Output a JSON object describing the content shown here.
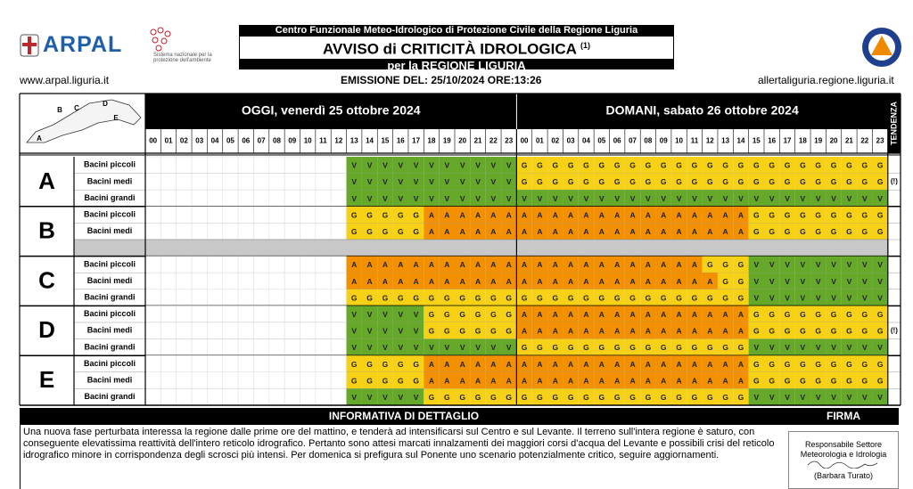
{
  "header": {
    "logo": "ARPAL",
    "snpa": "Sistema nazionale per la protezione dell'ambiente",
    "line1": "Centro Funzionale Meteo-Idrologico di Protezione Civile della Regione Liguria",
    "title": "AVVISO di CRITICITÀ IDROLOGICA",
    "note": "(1)",
    "subtitle": "per la REGIONE LIGURIA",
    "site_left": "www.arpal.liguria.it",
    "emission": "EMISSIONE DEL: 25/10/2024 ORE:13:26",
    "site_right": "allertaliguria.regione.liguria.it"
  },
  "table": {
    "today": "OGGI, venerdì 25 ottobre 2024",
    "tomorrow": "DOMANI, sabato 26 ottobre 2024",
    "trend": "TENDENZA",
    "hours": [
      "00",
      "01",
      "02",
      "03",
      "04",
      "05",
      "06",
      "07",
      "08",
      "09",
      "10",
      "11",
      "12",
      "13",
      "14",
      "15",
      "16",
      "17",
      "18",
      "19",
      "20",
      "21",
      "22",
      "23"
    ],
    "map_labels": [
      "A",
      "B",
      "C",
      "D",
      "E"
    ],
    "colors": {
      "V": "#66a82a",
      "G": "#f6d115",
      "A": "#f39000"
    },
    "zones": [
      {
        "name": "A",
        "rows": [
          {
            "basin": "Bacini piccoli",
            "cells": [
              null,
              null,
              null,
              null,
              null,
              null,
              null,
              null,
              null,
              null,
              null,
              null,
              null,
              "V",
              "V",
              "V",
              "V",
              "V",
              "V",
              "V",
              "V",
              "V",
              "V",
              "V",
              "G",
              "G",
              "G",
              "G",
              "G",
              "G",
              "G",
              "G",
              "G",
              "G",
              "G",
              "G",
              "G",
              "G",
              "G",
              "G",
              "G",
              "G",
              "G",
              "G",
              "G",
              "G",
              "G",
              "G"
            ]
          },
          {
            "basin": "Bacini medi",
            "tendenza": "(!)",
            "cells": [
              null,
              null,
              null,
              null,
              null,
              null,
              null,
              null,
              null,
              null,
              null,
              null,
              null,
              "V",
              "V",
              "V",
              "V",
              "V",
              "V",
              "V",
              "V",
              "V",
              "V",
              "V",
              "G",
              "G",
              "G",
              "G",
              "G",
              "G",
              "G",
              "G",
              "G",
              "G",
              "G",
              "G",
              "G",
              "G",
              "G",
              "G",
              "G",
              "G",
              "G",
              "G",
              "G",
              "G",
              "G",
              "G"
            ]
          },
          {
            "basin": "Bacini grandi",
            "cells": [
              null,
              null,
              null,
              null,
              null,
              null,
              null,
              null,
              null,
              null,
              null,
              null,
              null,
              "V",
              "V",
              "V",
              "V",
              "V",
              "V",
              "V",
              "V",
              "V",
              "V",
              "V",
              "V",
              "V",
              "V",
              "V",
              "V",
              "V",
              "V",
              "V",
              "V",
              "V",
              "V",
              "V",
              "V",
              "V",
              "V",
              "V",
              "V",
              "V",
              "V",
              "V",
              "V",
              "V",
              "V",
              "V"
            ]
          }
        ]
      },
      {
        "name": "B",
        "rows": [
          {
            "basin": "Bacini piccoli",
            "cells": [
              null,
              null,
              null,
              null,
              null,
              null,
              null,
              null,
              null,
              null,
              null,
              null,
              null,
              "G",
              "G",
              "G",
              "G",
              "G",
              "A",
              "A",
              "A",
              "A",
              "A",
              "A",
              "A",
              "A",
              "A",
              "A",
              "A",
              "A",
              "A",
              "A",
              "A",
              "A",
              "A",
              "A",
              "A",
              "A",
              "A",
              "G",
              "G",
              "G",
              "G",
              "G",
              "G",
              "G",
              "G",
              "G"
            ]
          },
          {
            "basin": "Bacini medi",
            "cells": [
              null,
              null,
              null,
              null,
              null,
              null,
              null,
              null,
              null,
              null,
              null,
              null,
              null,
              "G",
              "G",
              "G",
              "G",
              "G",
              "A",
              "A",
              "A",
              "A",
              "A",
              "A",
              "A",
              "A",
              "A",
              "A",
              "A",
              "A",
              "A",
              "A",
              "A",
              "A",
              "A",
              "A",
              "A",
              "A",
              "A",
              "G",
              "G",
              "G",
              "G",
              "G",
              "G",
              "G",
              "G",
              "G"
            ]
          }
        ]
      },
      {
        "name": "C",
        "rows": [
          {
            "basin": "Bacini piccoli",
            "cells": [
              null,
              null,
              null,
              null,
              null,
              null,
              null,
              null,
              null,
              null,
              null,
              null,
              null,
              "A",
              "A",
              "A",
              "A",
              "A",
              "A",
              "A",
              "A",
              "A",
              "A",
              "A",
              "A",
              "A",
              "A",
              "A",
              "A",
              "A",
              "A",
              "A",
              "A",
              "A",
              "A",
              "A",
              "G",
              "G",
              "G",
              "V",
              "V",
              "V",
              "V",
              "V",
              "V",
              "V",
              "V",
              "V"
            ]
          },
          {
            "basin": "Bacini medi",
            "cells": [
              null,
              null,
              null,
              null,
              null,
              null,
              null,
              null,
              null,
              null,
              null,
              null,
              null,
              "A",
              "A",
              "A",
              "A",
              "A",
              "A",
              "A",
              "A",
              "A",
              "A",
              "A",
              "A",
              "A",
              "A",
              "A",
              "A",
              "A",
              "A",
              "A",
              "A",
              "A",
              "A",
              "A",
              "A",
              "G",
              "G",
              "V",
              "V",
              "V",
              "V",
              "V",
              "V",
              "V",
              "V",
              "V"
            ]
          },
          {
            "basin": "Bacini grandi",
            "cells": [
              null,
              null,
              null,
              null,
              null,
              null,
              null,
              null,
              null,
              null,
              null,
              null,
              null,
              "G",
              "G",
              "G",
              "G",
              "G",
              "G",
              "G",
              "G",
              "G",
              "G",
              "G",
              "G",
              "G",
              "G",
              "G",
              "G",
              "G",
              "G",
              "G",
              "G",
              "G",
              "G",
              "G",
              "G",
              "G",
              "G",
              "V",
              "V",
              "V",
              "V",
              "V",
              "V",
              "V",
              "V",
              "V"
            ]
          }
        ]
      },
      {
        "name": "D",
        "rows": [
          {
            "basin": "Bacini piccoli",
            "cells": [
              null,
              null,
              null,
              null,
              null,
              null,
              null,
              null,
              null,
              null,
              null,
              null,
              null,
              "V",
              "V",
              "V",
              "V",
              "V",
              "G",
              "G",
              "G",
              "G",
              "G",
              "G",
              "A",
              "A",
              "A",
              "A",
              "A",
              "A",
              "A",
              "A",
              "A",
              "A",
              "A",
              "A",
              "A",
              "A",
              "A",
              "G",
              "G",
              "G",
              "G",
              "G",
              "G",
              "G",
              "G",
              "G"
            ]
          },
          {
            "basin": "Bacini medi",
            "tendenza": "(!)",
            "cells": [
              null,
              null,
              null,
              null,
              null,
              null,
              null,
              null,
              null,
              null,
              null,
              null,
              null,
              "V",
              "V",
              "V",
              "V",
              "V",
              "G",
              "G",
              "G",
              "G",
              "G",
              "G",
              "A",
              "A",
              "A",
              "A",
              "A",
              "A",
              "A",
              "A",
              "A",
              "A",
              "A",
              "A",
              "A",
              "A",
              "A",
              "G",
              "G",
              "G",
              "G",
              "G",
              "G",
              "G",
              "G",
              "G"
            ]
          },
          {
            "basin": "Bacini grandi",
            "cells": [
              null,
              null,
              null,
              null,
              null,
              null,
              null,
              null,
              null,
              null,
              null,
              null,
              null,
              "V",
              "V",
              "V",
              "V",
              "V",
              "V",
              "V",
              "V",
              "V",
              "V",
              "V",
              "G",
              "G",
              "G",
              "G",
              "G",
              "G",
              "G",
              "G",
              "G",
              "G",
              "G",
              "G",
              "G",
              "G",
              "G",
              "V",
              "V",
              "V",
              "V",
              "V",
              "V",
              "V",
              "V",
              "V"
            ]
          }
        ]
      },
      {
        "name": "E",
        "rows": [
          {
            "basin": "Bacini piccoli",
            "cells": [
              null,
              null,
              null,
              null,
              null,
              null,
              null,
              null,
              null,
              null,
              null,
              null,
              null,
              "G",
              "G",
              "G",
              "G",
              "G",
              "A",
              "A",
              "A",
              "A",
              "A",
              "A",
              "A",
              "A",
              "A",
              "A",
              "A",
              "A",
              "A",
              "A",
              "A",
              "A",
              "A",
              "A",
              "A",
              "A",
              "A",
              "G",
              "G",
              "G",
              "G",
              "G",
              "G",
              "G",
              "G",
              "G"
            ]
          },
          {
            "basin": "Bacini medi",
            "cells": [
              null,
              null,
              null,
              null,
              null,
              null,
              null,
              null,
              null,
              null,
              null,
              null,
              null,
              "G",
              "G",
              "G",
              "G",
              "G",
              "A",
              "A",
              "A",
              "A",
              "A",
              "A",
              "A",
              "A",
              "A",
              "A",
              "A",
              "A",
              "A",
              "A",
              "A",
              "A",
              "A",
              "A",
              "A",
              "A",
              "A",
              "G",
              "G",
              "G",
              "G",
              "G",
              "G",
              "G",
              "G",
              "G"
            ]
          },
          {
            "basin": "Bacini grandi",
            "cells": [
              null,
              null,
              null,
              null,
              null,
              null,
              null,
              null,
              null,
              null,
              null,
              null,
              null,
              "V",
              "V",
              "V",
              "V",
              "V",
              "G",
              "G",
              "G",
              "G",
              "G",
              "G",
              "G",
              "G",
              "G",
              "G",
              "G",
              "G",
              "G",
              "G",
              "G",
              "G",
              "G",
              "G",
              "G",
              "G",
              "G",
              "V",
              "V",
              "V",
              "V",
              "V",
              "V",
              "V",
              "V",
              "V"
            ]
          }
        ]
      }
    ]
  },
  "details": {
    "heading": "INFORMATIVA DI DETTAGLIO",
    "signature_heading": "FIRMA",
    "text": "Una nuova fase perturbata interessa la regione dalle prime ore del mattino, e tenderà ad intensificarsi sul Centro e sul Levante. Il terreno sull'intera regione è saturo, con conseguente elevatissima reattività dell'intero reticolo idrografico. Pertanto sono attesi marcati innalzamenti dei maggiori corsi d'acqua del Levante e possibili crisi del reticolo idrografico minore in corrispondenza degli scrosci più intensi. Per domenica si prefigura sul Ponente uno scenario potenzialmente critico, seguire aggiornamenti.",
    "role": "Responsabile Settore Meteorologia e Idrologia",
    "signer": "(Barbara Turato)"
  }
}
